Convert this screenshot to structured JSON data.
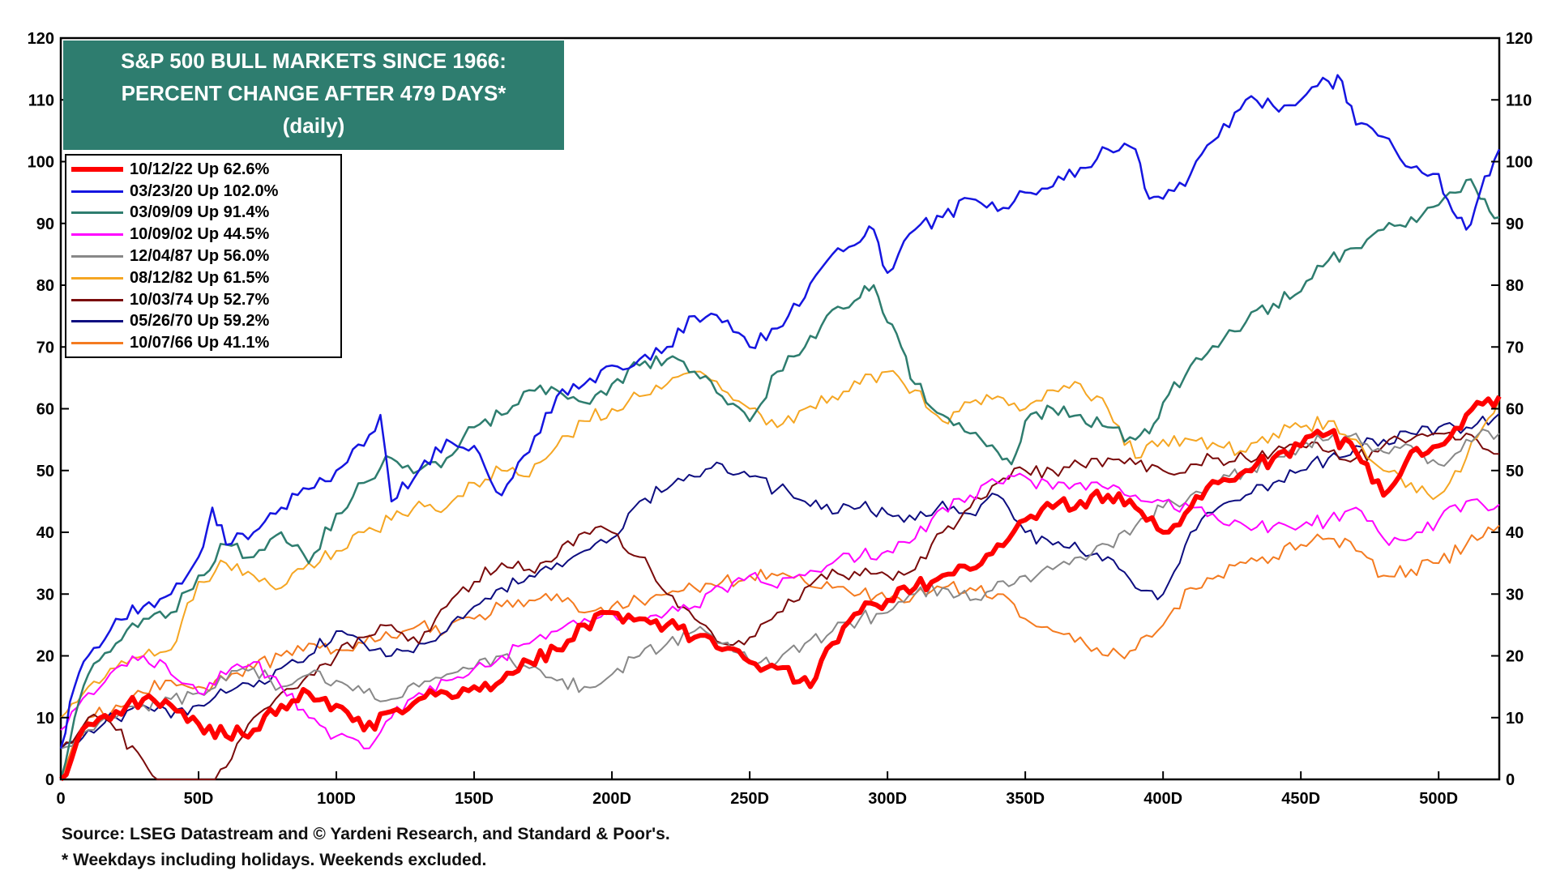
{
  "chart_data": {
    "type": "line",
    "title_lines": [
      "S&P 500 BULL MARKETS SINCE 1966:",
      "PERCENT CHANGE AFTER 479 DAYS*",
      "(daily)"
    ],
    "xlabel": "",
    "ylabel": "",
    "xlim": [
      0,
      522
    ],
    "ylim": [
      0,
      120
    ],
    "x_ticks": [
      0,
      50,
      100,
      150,
      200,
      250,
      300,
      350,
      400,
      450,
      500
    ],
    "x_tick_labels": [
      "0",
      "50D",
      "100D",
      "150D",
      "200D",
      "250D",
      "300D",
      "350D",
      "400D",
      "450D",
      "500D"
    ],
    "y_ticks": [
      0,
      10,
      20,
      30,
      40,
      50,
      60,
      70,
      80,
      90,
      100,
      110,
      120
    ],
    "y_tick_labels": [
      "0",
      "10",
      "20",
      "30",
      "40",
      "50",
      "60",
      "70",
      "80",
      "90",
      "100",
      "110",
      "120"
    ],
    "grid": false,
    "legend_position": "top-left",
    "series": [
      {
        "name": "10/12/22 Up 62.6%",
        "color": "#ff0000",
        "width": 6,
        "x": [
          0,
          10,
          20,
          30,
          40,
          50,
          60,
          70,
          80,
          90,
          100,
          110,
          120,
          130,
          140,
          150,
          160,
          170,
          180,
          190,
          200,
          210,
          220,
          230,
          240,
          250,
          260,
          272,
          280,
          290,
          300,
          310,
          320,
          330,
          340,
          350,
          360,
          370,
          380,
          390,
          400,
          410,
          420,
          430,
          440,
          450,
          460,
          470,
          480,
          490,
          500,
          510,
          522
        ],
        "values": [
          0,
          9,
          11,
          13,
          12,
          9,
          7,
          8,
          12,
          14,
          12,
          8,
          11,
          13,
          14,
          15,
          16,
          19,
          21,
          25,
          27,
          26,
          25,
          23,
          21,
          19,
          18,
          15,
          22,
          27,
          29,
          31,
          33,
          34,
          38,
          42,
          44,
          45,
          46,
          44,
          40,
          44,
          48,
          50,
          52,
          54,
          56,
          53,
          46,
          53,
          54,
          59,
          62
        ]
      },
      {
        "name": "03/23/20 Up 102.0%",
        "color": "#1515e0",
        "width": 2.5,
        "x": [
          0,
          5,
          10,
          20,
          30,
          40,
          50,
          55,
          60,
          70,
          80,
          90,
          100,
          110,
          116,
          120,
          130,
          140,
          150,
          160,
          170,
          180,
          190,
          200,
          210,
          220,
          230,
          240,
          250,
          260,
          270,
          280,
          290,
          295,
          300,
          310,
          320,
          330,
          340,
          350,
          360,
          370,
          380,
          390,
          395,
          400,
          410,
          420,
          430,
          440,
          450,
          460,
          465,
          470,
          480,
          490,
          500,
          505,
          510,
          515,
          522
        ],
        "values": [
          5,
          15,
          20,
          26,
          28,
          30,
          36,
          44,
          38,
          40,
          44,
          47,
          50,
          54,
          59,
          45,
          50,
          55,
          54,
          46,
          53,
          62,
          64,
          67,
          68,
          70,
          75,
          74,
          70,
          73,
          78,
          85,
          87,
          89,
          82,
          89,
          91,
          94,
          92,
          95,
          96,
          99,
          102,
          102,
          94,
          94,
          98,
          104,
          110,
          109,
          110,
          113,
          113,
          106,
          104,
          99,
          98,
          92,
          89,
          95,
          102
        ]
      },
      {
        "name": "03/09/09 Up 91.4%",
        "color": "#2e7d6f",
        "width": 2.5,
        "x": [
          0,
          5,
          10,
          20,
          30,
          40,
          50,
          60,
          70,
          80,
          90,
          100,
          110,
          120,
          130,
          140,
          150,
          160,
          170,
          180,
          190,
          200,
          210,
          220,
          230,
          240,
          250,
          260,
          270,
          280,
          290,
          295,
          300,
          305,
          310,
          320,
          330,
          340,
          345,
          350,
          360,
          370,
          380,
          390,
          395,
          400,
          410,
          420,
          430,
          440,
          450,
          460,
          470,
          480,
          490,
          500,
          510,
          515,
          522
        ],
        "values": [
          0,
          10,
          17,
          22,
          26,
          27,
          33,
          38,
          36,
          40,
          35,
          43,
          48,
          52,
          50,
          52,
          57,
          59,
          63,
          63,
          61,
          64,
          67,
          68,
          66,
          62,
          58,
          66,
          70,
          76,
          78,
          80,
          74,
          70,
          64,
          59,
          56,
          53,
          51,
          58,
          60,
          59,
          57,
          55,
          56,
          61,
          67,
          70,
          74,
          77,
          79,
          84,
          86,
          89,
          91,
          93,
          97,
          94,
          91
        ]
      },
      {
        "name": "10/09/02 Up 44.5%",
        "color": "#ff00ff",
        "width": 2,
        "x": [
          0,
          10,
          20,
          30,
          40,
          50,
          60,
          70,
          80,
          90,
          100,
          110,
          120,
          130,
          140,
          150,
          160,
          170,
          180,
          190,
          200,
          210,
          220,
          230,
          240,
          250,
          260,
          270,
          280,
          290,
          300,
          310,
          320,
          330,
          340,
          350,
          360,
          370,
          380,
          390,
          400,
          410,
          420,
          430,
          440,
          450,
          460,
          470,
          480,
          490,
          500,
          510,
          522
        ],
        "values": [
          8,
          14,
          18,
          20,
          17,
          14,
          17,
          19,
          15,
          10,
          7,
          5,
          10,
          14,
          16,
          18,
          20,
          22,
          24,
          26,
          27,
          26,
          27,
          28,
          31,
          33,
          31,
          33,
          35,
          36,
          37,
          39,
          44,
          46,
          48,
          49,
          47,
          48,
          47,
          46,
          45,
          44,
          42,
          41,
          41,
          41,
          42,
          44,
          39,
          39,
          42,
          45,
          44.5
        ]
      },
      {
        "name": "12/04/87 Up 56.0%",
        "color": "#888888",
        "width": 2,
        "x": [
          0,
          10,
          20,
          30,
          40,
          50,
          60,
          70,
          80,
          90,
          100,
          110,
          120,
          130,
          140,
          150,
          160,
          170,
          180,
          190,
          200,
          210,
          220,
          230,
          240,
          250,
          260,
          270,
          280,
          290,
          300,
          310,
          320,
          330,
          340,
          350,
          360,
          370,
          380,
          390,
          400,
          410,
          420,
          430,
          440,
          450,
          460,
          470,
          480,
          490,
          500,
          510,
          522
        ],
        "values": [
          5,
          8,
          10,
          12,
          13,
          14,
          16,
          18,
          15,
          17,
          16,
          14,
          13,
          15,
          17,
          18,
          20,
          18,
          16,
          15,
          17,
          20,
          22,
          24,
          22,
          19,
          19,
          22,
          24,
          26,
          27,
          30,
          31,
          29,
          32,
          33,
          34,
          36,
          38,
          41,
          44,
          46,
          48,
          50,
          52,
          54,
          55,
          56,
          53,
          54,
          51,
          55,
          56
        ]
      },
      {
        "name": "08/12/82 Up 61.5%",
        "color": "#f5a623",
        "width": 2,
        "x": [
          0,
          10,
          20,
          30,
          40,
          50,
          60,
          70,
          80,
          90,
          100,
          110,
          120,
          130,
          140,
          150,
          160,
          170,
          180,
          190,
          200,
          210,
          220,
          230,
          240,
          250,
          260,
          270,
          280,
          290,
          300,
          310,
          320,
          330,
          340,
          350,
          360,
          370,
          380,
          390,
          400,
          410,
          420,
          430,
          440,
          450,
          460,
          470,
          480,
          490,
          500,
          510,
          522
        ],
        "values": [
          10,
          15,
          18,
          20,
          21,
          32,
          35,
          33,
          31,
          35,
          37,
          40,
          42,
          45,
          44,
          48,
          50,
          49,
          54,
          58,
          60,
          62,
          64,
          66,
          63,
          60,
          57,
          60,
          62,
          64,
          66,
          63,
          58,
          61,
          62,
          60,
          63,
          64,
          60,
          52,
          55,
          55,
          54,
          53,
          56,
          57,
          58,
          55,
          50,
          48,
          46,
          52,
          61.5
        ]
      },
      {
        "name": "10/03/74 Up 52.7%",
        "color": "#7a0b0b",
        "width": 2,
        "x": [
          0,
          10,
          20,
          30,
          35,
          40,
          50,
          60,
          70,
          80,
          90,
          100,
          110,
          120,
          130,
          140,
          150,
          160,
          170,
          180,
          190,
          200,
          210,
          220,
          230,
          240,
          250,
          260,
          270,
          280,
          290,
          300,
          310,
          320,
          330,
          340,
          350,
          360,
          370,
          380,
          390,
          400,
          410,
          420,
          430,
          440,
          450,
          460,
          470,
          480,
          490,
          500,
          510,
          522
        ],
        "values": [
          5,
          10,
          8,
          3,
          -2,
          -5,
          -5,
          2,
          10,
          14,
          17,
          20,
          23,
          25,
          22,
          28,
          32,
          35,
          34,
          36,
          40,
          40,
          36,
          30,
          26,
          22,
          23,
          27,
          31,
          34,
          33,
          33,
          34,
          40,
          44,
          48,
          50,
          50,
          51,
          52,
          51,
          50,
          51,
          52,
          52,
          53,
          54,
          53,
          52,
          54,
          55,
          56,
          56,
          52.7
        ]
      },
      {
        "name": "05/26/70 Up 59.2%",
        "color": "#0d0d80",
        "width": 2,
        "x": [
          0,
          10,
          20,
          30,
          40,
          50,
          60,
          70,
          80,
          90,
          100,
          110,
          120,
          130,
          140,
          150,
          160,
          170,
          180,
          190,
          200,
          210,
          220,
          230,
          240,
          250,
          260,
          270,
          280,
          290,
          300,
          310,
          320,
          330,
          340,
          350,
          360,
          370,
          380,
          390,
          400,
          410,
          420,
          430,
          440,
          450,
          460,
          470,
          480,
          490,
          500,
          510,
          522
        ],
        "values": [
          5,
          8,
          10,
          12,
          10,
          12,
          14,
          15,
          18,
          20,
          24,
          22,
          20,
          22,
          24,
          28,
          31,
          33,
          35,
          37,
          39,
          45,
          47,
          49,
          51,
          49,
          47,
          45,
          43,
          44,
          43,
          42,
          45,
          43,
          46,
          40,
          38,
          37,
          36,
          31,
          30,
          40,
          44,
          46,
          48,
          50,
          52,
          54,
          55,
          56,
          57,
          57,
          59.2
        ]
      },
      {
        "name": "10/07/66 Up 41.1%",
        "color": "#f47b20",
        "width": 2,
        "x": [
          0,
          10,
          20,
          30,
          40,
          50,
          60,
          70,
          80,
          90,
          100,
          110,
          120,
          130,
          140,
          150,
          160,
          170,
          180,
          190,
          200,
          210,
          220,
          230,
          240,
          250,
          260,
          270,
          280,
          290,
          300,
          310,
          320,
          330,
          340,
          350,
          360,
          370,
          380,
          390,
          400,
          410,
          420,
          430,
          440,
          450,
          460,
          470,
          480,
          490,
          500,
          510,
          522
        ],
        "values": [
          0,
          10,
          12,
          14,
          16,
          15,
          16,
          18,
          20,
          22,
          21,
          22,
          23,
          25,
          24,
          26,
          28,
          29,
          30,
          27,
          28,
          29,
          30,
          31,
          32,
          33,
          33,
          32,
          31,
          30,
          29,
          30,
          31,
          31,
          30,
          26,
          24,
          23,
          20,
          21,
          25,
          31,
          33,
          35,
          36,
          38,
          39,
          37,
          33,
          34,
          35,
          38,
          41.1
        ]
      }
    ]
  },
  "footer": {
    "source": "Source: LSEG Datastream and © Yardeni Research, and Standard & Poor's.",
    "note": "* Weekdays including holidays. Weekends excluded."
  }
}
